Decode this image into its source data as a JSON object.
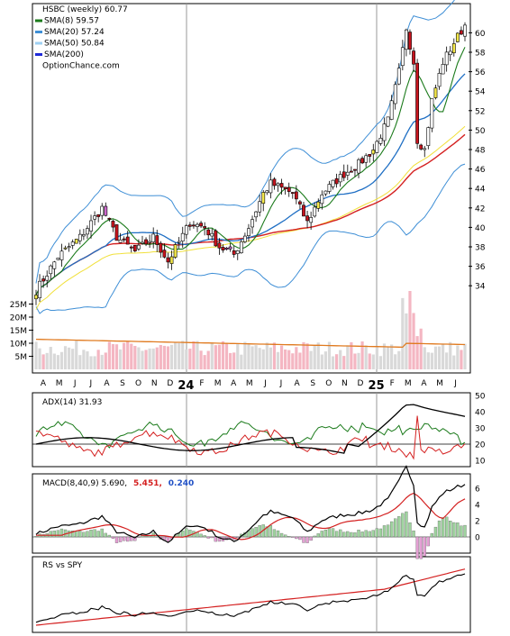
{
  "main_panel": {
    "legend": [
      {
        "label": "HSBC (weekly) 60.77",
        "color": "#000000",
        "swatch": false
      },
      {
        "label": "SMA(8) 59.57",
        "color": "#1a7a1a",
        "swatch": true
      },
      {
        "label": "SMA(20) 57.24",
        "color": "#3f8fd6",
        "swatch": true
      },
      {
        "label": "SMA(50) 50.84",
        "color": "#9fd0f2",
        "swatch": true
      },
      {
        "label": "SMA(200)",
        "color": "#1f2ad8",
        "swatch": true
      },
      {
        "label": "OptionChance.com",
        "color": "#000000",
        "swatch": false
      }
    ],
    "price_ticks": [
      34,
      36,
      38,
      40,
      42,
      44,
      46,
      48,
      50,
      52,
      54,
      56,
      58,
      60
    ],
    "volume_ticks": [
      "5M",
      "10M",
      "15M",
      "20M",
      "25M"
    ],
    "month_labels": [
      "A",
      "M",
      "J",
      "J",
      "A",
      "S",
      "O",
      "N",
      "D",
      "24",
      "F",
      "M",
      "A",
      "M",
      "J",
      "J",
      "A",
      "S",
      "O",
      "N",
      "D",
      "25",
      "F",
      "M",
      "A",
      "M",
      "J"
    ],
    "colors": {
      "up": "#ffffff",
      "down": "#c8141e",
      "up_accent": "#f4e84a",
      "down_accent": "#cc66cc",
      "bollinger": "#3f8fd6",
      "sma8": "#1a7a1a",
      "sma20": "#1f6fc4",
      "sma50": "#d42020",
      "sma_band": "#f1e03a",
      "vol_up": "#d9d9d9",
      "vol_down": "#f4b6c2",
      "vol_avg": "#e07a1f"
    }
  },
  "adx_panel": {
    "label": "ADX(14) 31.93",
    "ticks": [
      10,
      20,
      30,
      40,
      50
    ]
  },
  "macd_panel": {
    "label_prefix": "MACD(8,40,9) 5.690,",
    "label_signal": "5.451,",
    "label_hist": "0.240",
    "ticks": [
      0,
      2,
      4,
      6
    ]
  },
  "rs_panel": {
    "label": "RS vs SPY"
  },
  "chart_data": [
    {
      "type": "candlestick",
      "title": "HSBC (weekly) 60.77",
      "x": [
        "Apr 2023",
        "Jun 2023",
        "Aug 2023",
        "Oct 2023",
        "Dec 2023",
        "Feb 2024",
        "Apr 2024",
        "Jun 2024",
        "Aug 2024",
        "Oct 2024",
        "Dec 2024",
        "Feb 2025",
        "Apr 2025",
        "Jun 2025"
      ],
      "close": [
        34.5,
        41.0,
        38.5,
        38.0,
        40.5,
        38.5,
        41.5,
        43.5,
        42.5,
        45.5,
        49.5,
        53.5,
        52.0,
        60.77
      ],
      "ylim": [
        33,
        62
      ],
      "series": [
        {
          "name": "SMA(8)",
          "last": 59.57
        },
        {
          "name": "SMA(20)",
          "last": 57.24
        },
        {
          "name": "SMA(50)",
          "last": 50.84
        },
        {
          "name": "SMA(200)"
        }
      ]
    },
    {
      "type": "bar",
      "ylabel": "",
      "ylim": [
        0,
        30
      ],
      "values_million": [
        6,
        9,
        11,
        8,
        7,
        12,
        9,
        8,
        10,
        9,
        7,
        15,
        13,
        9
      ]
    },
    {
      "type": "line",
      "series": [
        {
          "name": "ADX(14)",
          "last": 31.93
        }
      ],
      "ylim": [
        5,
        52
      ]
    },
    {
      "type": "line",
      "series": [
        {
          "name": "MACD(8,40,9)",
          "last": 5.69
        },
        {
          "name": "signal",
          "last": 5.451
        },
        {
          "name": "histogram",
          "last": 0.24
        }
      ],
      "ylim": [
        -2,
        7
      ]
    },
    {
      "type": "line",
      "series": [
        {
          "name": "RS vs SPY"
        }
      ]
    }
  ]
}
